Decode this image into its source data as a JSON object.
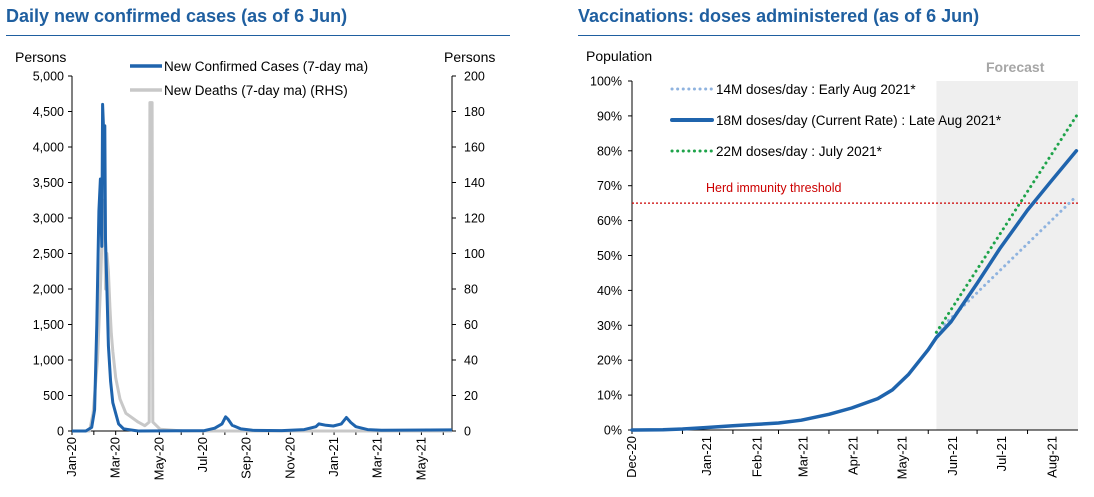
{
  "chart_data": [
    {
      "type": "line",
      "title": "Daily new confirmed cases (as of 6 Jun)",
      "ylabel_left": "Persons",
      "ylabel_right": "Persons",
      "ylim_left": [
        0,
        5000
      ],
      "ylim_right": [
        0,
        200
      ],
      "yticks_left": [
        "0",
        "500",
        "1,000",
        "1,500",
        "2,000",
        "2,500",
        "3,000",
        "3,500",
        "4,000",
        "4,500",
        "5,000"
      ],
      "yticks_right": [
        "0",
        "20",
        "40",
        "60",
        "80",
        "100",
        "120",
        "140",
        "160",
        "180",
        "200"
      ],
      "x_tick_labels": [
        "Jan-20",
        "Mar-20",
        "May-20",
        "Jul-20",
        "Sep-20",
        "Nov-20",
        "Jan-21",
        "Mar-21",
        "May-21"
      ],
      "x_range": [
        "2020-01-01",
        "2021-06-06"
      ],
      "grid": false,
      "legend_position": "top",
      "series": [
        {
          "name": "New Confirmed Cases (7-day ma)",
          "axis": "left",
          "color": "#1f64ad",
          "points": [
            [
              "2020-01-01",
              0
            ],
            [
              "2020-01-20",
              0
            ],
            [
              "2020-01-28",
              50
            ],
            [
              "2020-02-01",
              300
            ],
            [
              "2020-02-04",
              1500
            ],
            [
              "2020-02-07",
              3100
            ],
            [
              "2020-02-09",
              3550
            ],
            [
              "2020-02-10",
              3000
            ],
            [
              "2020-02-11",
              2600
            ],
            [
              "2020-02-12",
              4600
            ],
            [
              "2020-02-13",
              4350
            ],
            [
              "2020-02-14",
              4000
            ],
            [
              "2020-02-15",
              4300
            ],
            [
              "2020-02-16",
              2700
            ],
            [
              "2020-02-18",
              2000
            ],
            [
              "2020-02-20",
              1200
            ],
            [
              "2020-02-23",
              700
            ],
            [
              "2020-02-26",
              400
            ],
            [
              "2020-03-01",
              250
            ],
            [
              "2020-03-05",
              100
            ],
            [
              "2020-03-12",
              30
            ],
            [
              "2020-04-01",
              0
            ],
            [
              "2020-07-01",
              5
            ],
            [
              "2020-07-15",
              40
            ],
            [
              "2020-07-25",
              100
            ],
            [
              "2020-07-30",
              200
            ],
            [
              "2020-08-02",
              170
            ],
            [
              "2020-08-08",
              80
            ],
            [
              "2020-08-20",
              30
            ],
            [
              "2020-09-05",
              10
            ],
            [
              "2020-10-15",
              5
            ],
            [
              "2020-11-15",
              20
            ],
            [
              "2020-12-01",
              60
            ],
            [
              "2020-12-05",
              100
            ],
            [
              "2020-12-15",
              80
            ],
            [
              "2020-12-25",
              70
            ],
            [
              "2021-01-05",
              100
            ],
            [
              "2021-01-12",
              190
            ],
            [
              "2021-01-18",
              120
            ],
            [
              "2021-01-25",
              60
            ],
            [
              "2021-02-10",
              20
            ],
            [
              "2021-03-01",
              10
            ],
            [
              "2021-06-06",
              15
            ]
          ]
        },
        {
          "name": "New Deaths (7-day ma) (RHS)",
          "axis": "right",
          "color": "#c8c8c8",
          "points": [
            [
              "2020-01-01",
              0
            ],
            [
              "2020-01-25",
              0
            ],
            [
              "2020-01-30",
              10
            ],
            [
              "2020-02-05",
              40
            ],
            [
              "2020-02-09",
              80
            ],
            [
              "2020-02-12",
              120
            ],
            [
              "2020-02-14",
              130
            ],
            [
              "2020-02-15",
              120
            ],
            [
              "2020-02-16",
              80
            ],
            [
              "2020-02-18",
              100
            ],
            [
              "2020-02-20",
              90
            ],
            [
              "2020-02-22",
              70
            ],
            [
              "2020-02-24",
              55
            ],
            [
              "2020-02-26",
              45
            ],
            [
              "2020-03-01",
              30
            ],
            [
              "2020-03-07",
              18
            ],
            [
              "2020-03-15",
              10
            ],
            [
              "2020-04-01",
              5
            ],
            [
              "2020-04-10",
              3
            ],
            [
              "2020-04-16",
              5
            ],
            [
              "2020-04-17",
              185
            ],
            [
              "2020-04-20",
              185
            ],
            [
              "2020-04-21",
              5
            ],
            [
              "2020-05-01",
              1
            ],
            [
              "2020-06-01",
              0
            ],
            [
              "2021-06-06",
              0
            ]
          ]
        }
      ]
    },
    {
      "type": "line",
      "title": "Vaccinations: doses administered (as of 6 Jun)",
      "ylabel": "Population",
      "ylim": [
        0,
        100
      ],
      "yticks": [
        "0%",
        "10%",
        "20%",
        "30%",
        "40%",
        "50%",
        "60%",
        "70%",
        "80%",
        "90%",
        "100%"
      ],
      "x_tick_labels": [
        "Dec-20",
        "Jan-21",
        "Feb-21",
        "Mar-21",
        "Apr-21",
        "May-21",
        "Jun-21",
        "Jul-21",
        "Aug-21"
      ],
      "x_range": [
        "2020-12-01",
        "2021-09-01"
      ],
      "grid": false,
      "legend_position": "top-left",
      "forecast_region": {
        "label": "Forecast",
        "start": "2021-06-06",
        "end": "2021-09-01",
        "color": "#efefef"
      },
      "reference_line": {
        "label": "Herd immunity threshold",
        "y": 65,
        "color": "#cc0000"
      },
      "series": [
        {
          "name": "14M doses/day : Early Aug 2021*",
          "color": "#8fb3df",
          "style": "dotted",
          "points": [
            [
              "2021-06-06",
              28
            ],
            [
              "2021-08-31",
              67
            ]
          ]
        },
        {
          "name": "18M doses/day (Current Rate) : Late Aug 2021*",
          "color": "#1f64ad",
          "style": "solid",
          "points": [
            [
              "2020-12-01",
              0
            ],
            [
              "2020-12-20",
              0.1
            ],
            [
              "2021-01-01",
              0.3
            ],
            [
              "2021-01-15",
              0.7
            ],
            [
              "2021-02-01",
              1.2
            ],
            [
              "2021-02-15",
              1.6
            ],
            [
              "2021-03-01",
              2.0
            ],
            [
              "2021-03-15",
              2.8
            ],
            [
              "2021-04-01",
              4.5
            ],
            [
              "2021-04-15",
              6.3
            ],
            [
              "2021-05-01",
              9.0
            ],
            [
              "2021-05-10",
              11.5
            ],
            [
              "2021-05-20",
              16.0
            ],
            [
              "2021-06-01",
              23.0
            ],
            [
              "2021-06-06",
              26.5
            ],
            [
              "2021-06-15",
              31.0
            ],
            [
              "2021-07-01",
              42.0
            ],
            [
              "2021-07-15",
              52.0
            ],
            [
              "2021-08-01",
              63.0
            ],
            [
              "2021-08-15",
              71.0
            ],
            [
              "2021-08-31",
              80.0
            ]
          ]
        },
        {
          "name": "22M doses/day : July 2021*",
          "color": "#1ea34a",
          "style": "dotted",
          "points": [
            [
              "2021-06-06",
              28
            ],
            [
              "2021-08-31",
              90
            ]
          ]
        }
      ]
    }
  ]
}
